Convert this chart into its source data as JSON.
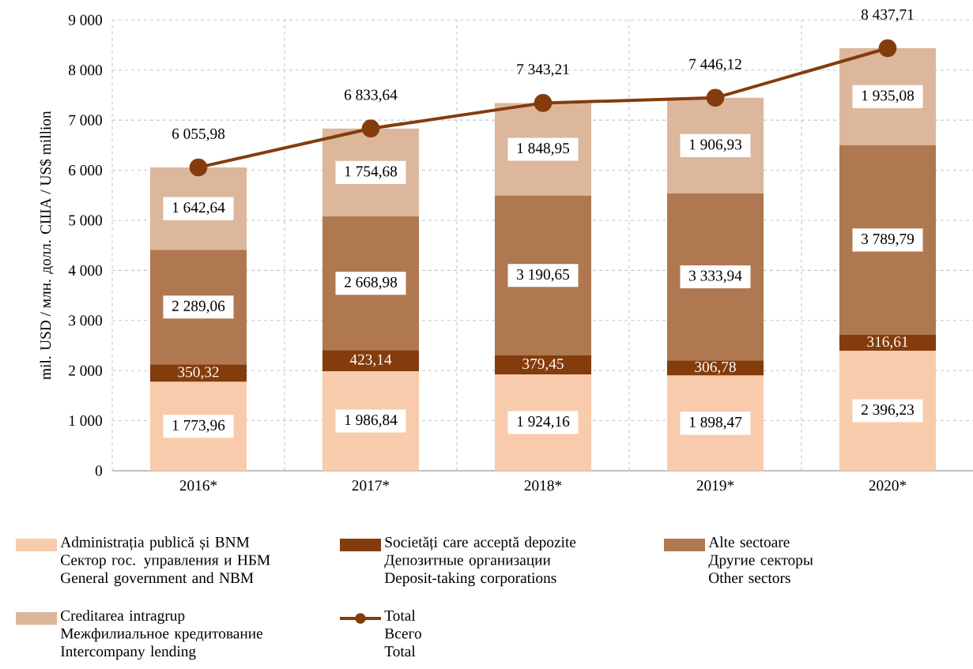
{
  "chart_data": {
    "type": "bar",
    "stacked": true,
    "ylabel": "mil. USD / млн. долл. США / US$ million",
    "categories": [
      "2016*",
      "2017*",
      "2018*",
      "2019*",
      "2020*"
    ],
    "ylim": [
      0,
      9000
    ],
    "yticks": [
      0,
      {
        "value": 1000,
        "label": "1 000"
      },
      {
        "value": 2000,
        "label": "2 000"
      },
      {
        "value": 3000,
        "label": "3 000"
      },
      {
        "value": 4000,
        "label": "4 000"
      },
      {
        "value": 5000,
        "label": "5 000"
      },
      {
        "value": 6000,
        "label": "6 000"
      },
      {
        "value": 7000,
        "label": "7 000"
      },
      {
        "value": 8000,
        "label": "8 000"
      },
      {
        "value": 9000,
        "label": "9 000"
      }
    ],
    "grid": true,
    "legend": "bottom",
    "series": [
      {
        "name": "Administrația publică și BNM\nСектор гос. управления и НБМ\nGeneral government and NBM",
        "color": "#f8cbad",
        "values": [
          1773.96,
          1986.84,
          1924.16,
          1898.47,
          2396.23
        ],
        "value_labels": [
          "1 773,96",
          "1 986,84",
          "1 924,16",
          "1 898,47",
          "2 396,23"
        ]
      },
      {
        "name": "Societăți care acceptă depozite\nДепозитные организации\nDeposit-taking corporations",
        "color": "#843c0c",
        "values": [
          350.32,
          423.14,
          379.45,
          306.78,
          316.61
        ],
        "value_labels": [
          "350,32",
          "423,14",
          "379,45",
          "306,78",
          "316,61"
        ]
      },
      {
        "name": "Alte sectoare\nДругие секторы\nOther sectors",
        "color": "#b07850",
        "values": [
          2289.06,
          2668.98,
          3190.65,
          3333.94,
          3789.79
        ],
        "value_labels": [
          "2 289,06",
          "2 668,98",
          "3 190,65",
          "3 333,94",
          "3 789,79"
        ]
      },
      {
        "name": "Creditarea intragrup\nМежфилиальное кредитование\nIntercompany lending",
        "color": "#dcb79c",
        "values": [
          1642.64,
          1754.68,
          1848.95,
          1906.93,
          1935.08
        ],
        "value_labels": [
          "1 642,64",
          "1 754,68",
          "1 848,95",
          "1 906,93",
          "1 935,08"
        ]
      },
      {
        "name": "Total\nВсего\nTotal",
        "type": "line",
        "marker": "circle",
        "color": "#843c0c",
        "values": [
          6055.98,
          6833.64,
          7343.21,
          7446.12,
          8437.71
        ],
        "value_labels": [
          "6 055,98",
          "6 833,64",
          "7 343,21",
          "7 446,12",
          "8 437,71"
        ]
      }
    ]
  }
}
